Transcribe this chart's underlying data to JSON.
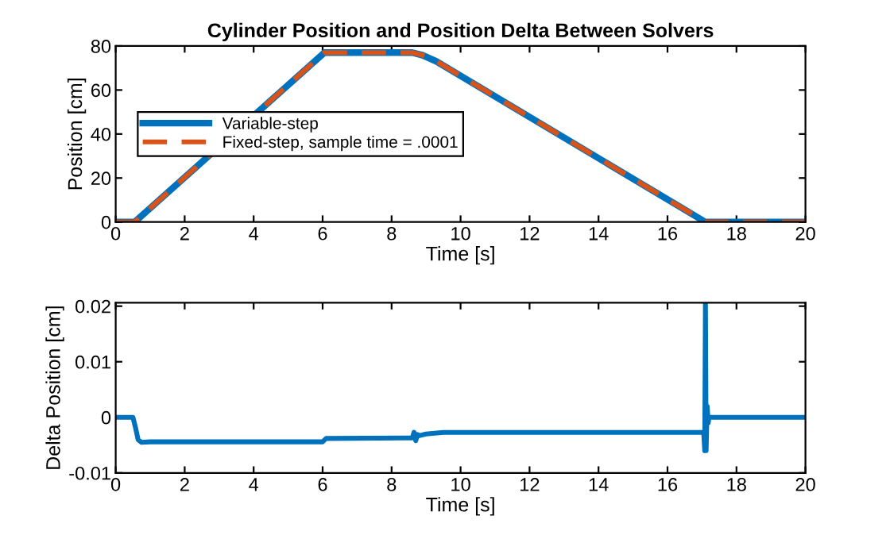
{
  "chart_data": [
    {
      "type": "line",
      "title": "Cylinder Position and Position Delta Between Solvers",
      "xlabel": "Time [s]",
      "ylabel": "Position [cm]",
      "xlim": [
        0,
        20
      ],
      "ylim": [
        0,
        80
      ],
      "xticks": [
        0,
        2,
        4,
        6,
        8,
        10,
        12,
        14,
        16,
        18,
        20
      ],
      "yticks": [
        0,
        20,
        40,
        60,
        80
      ],
      "grid": false,
      "legend": "left",
      "series": [
        {
          "name": "Variable-step",
          "color": "#0072bd",
          "line_style": "solid",
          "x": [
            0,
            0.55,
            6.05,
            8.6,
            8.9,
            9.3,
            17.1,
            20
          ],
          "values": [
            0,
            0,
            77,
            77,
            75.8,
            73,
            0,
            0
          ]
        },
        {
          "name": "Fixed-step, sample time = .0001",
          "color": "#d95319",
          "line_style": "dashed",
          "x": [
            0,
            0.55,
            6.05,
            8.6,
            8.9,
            9.3,
            17.1,
            20
          ],
          "values": [
            0,
            0,
            77,
            77,
            75.8,
            73,
            0,
            0
          ]
        }
      ]
    },
    {
      "type": "line",
      "xlabel": "Time [s]",
      "ylabel": "Delta Position [cm]",
      "xlim": [
        0,
        20
      ],
      "ylim": [
        -0.01,
        0.0206
      ],
      "xticks": [
        0,
        2,
        4,
        6,
        8,
        10,
        12,
        14,
        16,
        18,
        20
      ],
      "yticks": [
        -0.01,
        0,
        0.01,
        0.02
      ],
      "grid": false,
      "series": [
        {
          "color": "#0072bd",
          "line_style": "solid",
          "x": [
            0,
            0.5,
            0.58,
            0.65,
            0.75,
            1.0,
            6.0,
            6.1,
            8.6,
            8.65,
            8.7,
            8.75,
            8.8,
            9.0,
            9.5,
            17.05,
            17.08,
            17.1,
            17.12,
            17.15,
            17.18,
            17.2,
            20
          ],
          "values": [
            0,
            0,
            -0.002,
            -0.004,
            -0.0045,
            -0.0044,
            -0.0044,
            -0.0038,
            -0.0037,
            -0.0027,
            -0.0042,
            -0.0031,
            -0.0033,
            -0.003,
            -0.0027,
            -0.0027,
            -0.006,
            0.0205,
            -0.006,
            0.002,
            -0.001,
            0,
            0
          ]
        }
      ]
    }
  ]
}
